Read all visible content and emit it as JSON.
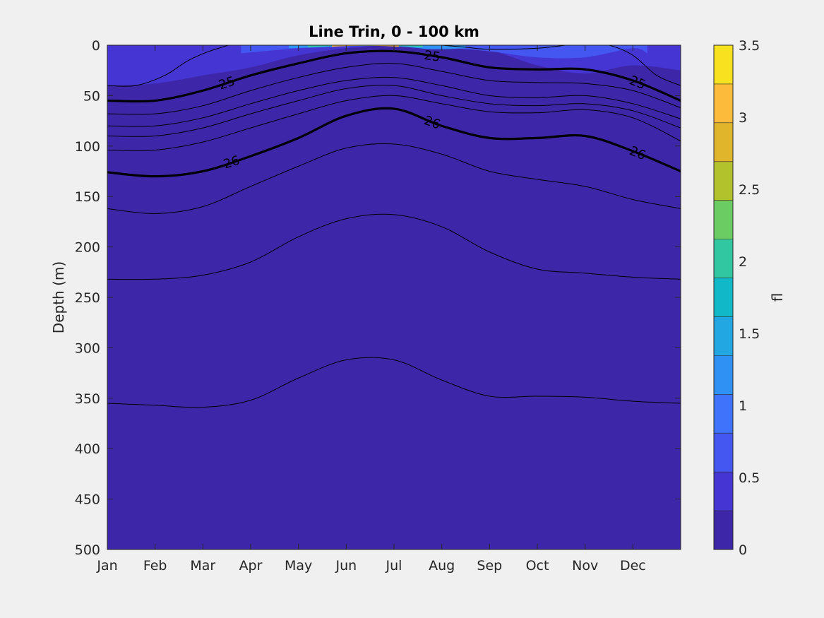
{
  "chart_data": {
    "type": "contourf",
    "title": "Line Trin, 0 - 100 km",
    "xlabel": "",
    "ylabel": "Depth (m)",
    "x_tick_labels": [
      "Jan",
      "Feb",
      "Mar",
      "Apr",
      "May",
      "Jun",
      "Jul",
      "Aug",
      "Sep",
      "Oct",
      "Nov",
      "Dec"
    ],
    "y_ticks": [
      0,
      50,
      100,
      150,
      200,
      250,
      300,
      350,
      400,
      450,
      500
    ],
    "ylim": [
      0,
      500
    ],
    "y_reversed": true,
    "colorbar": {
      "label": "fl",
      "min": 0,
      "max": 3.5,
      "ticks": [
        0,
        0.5,
        1,
        1.5,
        2,
        2.5,
        3,
        3.5
      ],
      "tick_labels": [
        "0",
        "0.5",
        "1",
        "1.5",
        "2",
        "2.5",
        "3",
        "3.5"
      ],
      "level_colors": [
        "#3e26a8",
        "#4536d4",
        "#4457f0",
        "#3f73fb",
        "#2f91f3",
        "#22a7e3",
        "#10b8c8",
        "#30c7a1",
        "#6bcc63",
        "#b2c22c",
        "#e1b52b",
        "#fdbb3b",
        "#f8e21f"
      ]
    },
    "fluorescence_patches": [
      {
        "level": 0.25,
        "month": [
          0.0,
          0.5,
          1,
          2,
          3,
          4,
          5,
          6,
          7,
          8,
          9,
          10,
          11,
          12
        ],
        "depth": [
          60,
          62,
          55,
          50,
          42,
          28,
          20,
          18,
          22,
          38,
          52,
          55,
          58,
          60
        ]
      },
      {
        "level": 0.5,
        "month": [
          0.0,
          1,
          2,
          3,
          4,
          5,
          6,
          7,
          8,
          9,
          10,
          11,
          12
        ],
        "depth": [
          40,
          38,
          30,
          22,
          10,
          3,
          0,
          2,
          5,
          20,
          28,
          20,
          25
        ]
      },
      {
        "level": 0.75,
        "month": [
          2.8,
          4,
          5,
          6,
          7,
          8,
          9,
          10,
          11,
          11.3
        ],
        "depth": [
          8,
          3,
          0,
          0,
          2,
          6,
          12,
          12,
          3,
          8
        ]
      },
      {
        "level": 1.25,
        "month": [
          3.8,
          4.5,
          5,
          6,
          6.8,
          7.5
        ],
        "depth": [
          3,
          2,
          1,
          1,
          4,
          3
        ]
      },
      {
        "level": 2.0,
        "month": [
          4.2,
          4.6,
          5,
          5.6,
          6.2,
          6.6
        ],
        "depth": [
          2,
          1,
          0.5,
          0.5,
          1,
          2
        ]
      },
      {
        "level": 3.0,
        "month": [
          4.7,
          5.0,
          5.4,
          5.8,
          6.1
        ],
        "depth": [
          1.5,
          0.8,
          0.5,
          0.8,
          1.5
        ]
      }
    ],
    "contours": [
      {
        "month": [
          0,
          0.6,
          1.2,
          1.7,
          2.2,
          3,
          4,
          5,
          6,
          6.5,
          7,
          7.5,
          8,
          9,
          10,
          10.5,
          11,
          11.5,
          12
        ],
        "depth": [
          40,
          40,
          30,
          15,
          5,
          -5,
          -8,
          -6,
          -3,
          -2,
          0,
          2,
          4,
          3,
          -2,
          0,
          10,
          30,
          40
        ],
        "bold": false,
        "label": null
      },
      {
        "month": [
          0,
          1,
          2,
          3,
          4,
          5,
          6,
          7,
          8,
          9,
          10,
          11,
          12
        ],
        "depth": [
          55,
          55,
          45,
          30,
          18,
          8,
          6,
          12,
          22,
          24,
          24,
          35,
          55
        ],
        "bold": true,
        "label": "25",
        "label_months": [
          2.5,
          6.8,
          11.1
        ]
      },
      {
        "month": [
          0,
          1,
          2,
          3,
          4,
          5,
          6,
          7,
          8,
          9,
          10,
          11,
          12
        ],
        "depth": [
          68,
          68,
          60,
          45,
          32,
          22,
          18,
          26,
          35,
          37,
          38,
          45,
          62
        ]
      },
      {
        "month": [
          0,
          1,
          2,
          3,
          4,
          5,
          6,
          7,
          8,
          9,
          10,
          11,
          12
        ],
        "depth": [
          80,
          80,
          72,
          58,
          45,
          35,
          32,
          40,
          50,
          52,
          50,
          58,
          73
        ]
      },
      {
        "month": [
          0,
          1,
          2,
          3,
          4,
          5,
          6,
          7,
          8,
          9,
          10,
          11,
          12
        ],
        "depth": [
          90,
          90,
          82,
          68,
          55,
          43,
          40,
          50,
          58,
          60,
          58,
          65,
          82
        ]
      },
      {
        "month": [
          0,
          1,
          2,
          3,
          4,
          5,
          6,
          7,
          8,
          9,
          10,
          11,
          12
        ],
        "depth": [
          104,
          104,
          96,
          82,
          68,
          55,
          50,
          58,
          66,
          67,
          64,
          72,
          95
        ]
      },
      {
        "month": [
          0,
          1,
          2,
          3,
          4,
          5,
          6,
          7,
          8,
          9,
          10,
          11,
          12
        ],
        "depth": [
          126,
          130,
          125,
          110,
          92,
          70,
          63,
          80,
          92,
          92,
          90,
          105,
          125
        ],
        "bold": true,
        "label": "26",
        "label_months": [
          2.6,
          6.8,
          11.1
        ]
      },
      {
        "month": [
          0,
          1,
          2,
          3,
          4,
          5,
          6,
          7,
          8,
          9,
          10,
          11,
          12
        ],
        "depth": [
          162,
          167,
          160,
          140,
          120,
          102,
          98,
          108,
          125,
          133,
          140,
          153,
          162
        ]
      },
      {
        "month": [
          0,
          1,
          2,
          3,
          4,
          5,
          6,
          7,
          8,
          9,
          10,
          11,
          12
        ],
        "depth": [
          232,
          232,
          228,
          215,
          190,
          172,
          168,
          180,
          205,
          222,
          226,
          230,
          232
        ]
      },
      {
        "month": [
          0,
          1,
          2,
          3,
          4,
          5,
          6,
          7,
          8,
          9,
          10,
          11,
          12
        ],
        "depth": [
          355,
          357,
          359,
          352,
          330,
          312,
          312,
          332,
          348,
          348,
          349,
          353,
          355
        ]
      }
    ]
  }
}
